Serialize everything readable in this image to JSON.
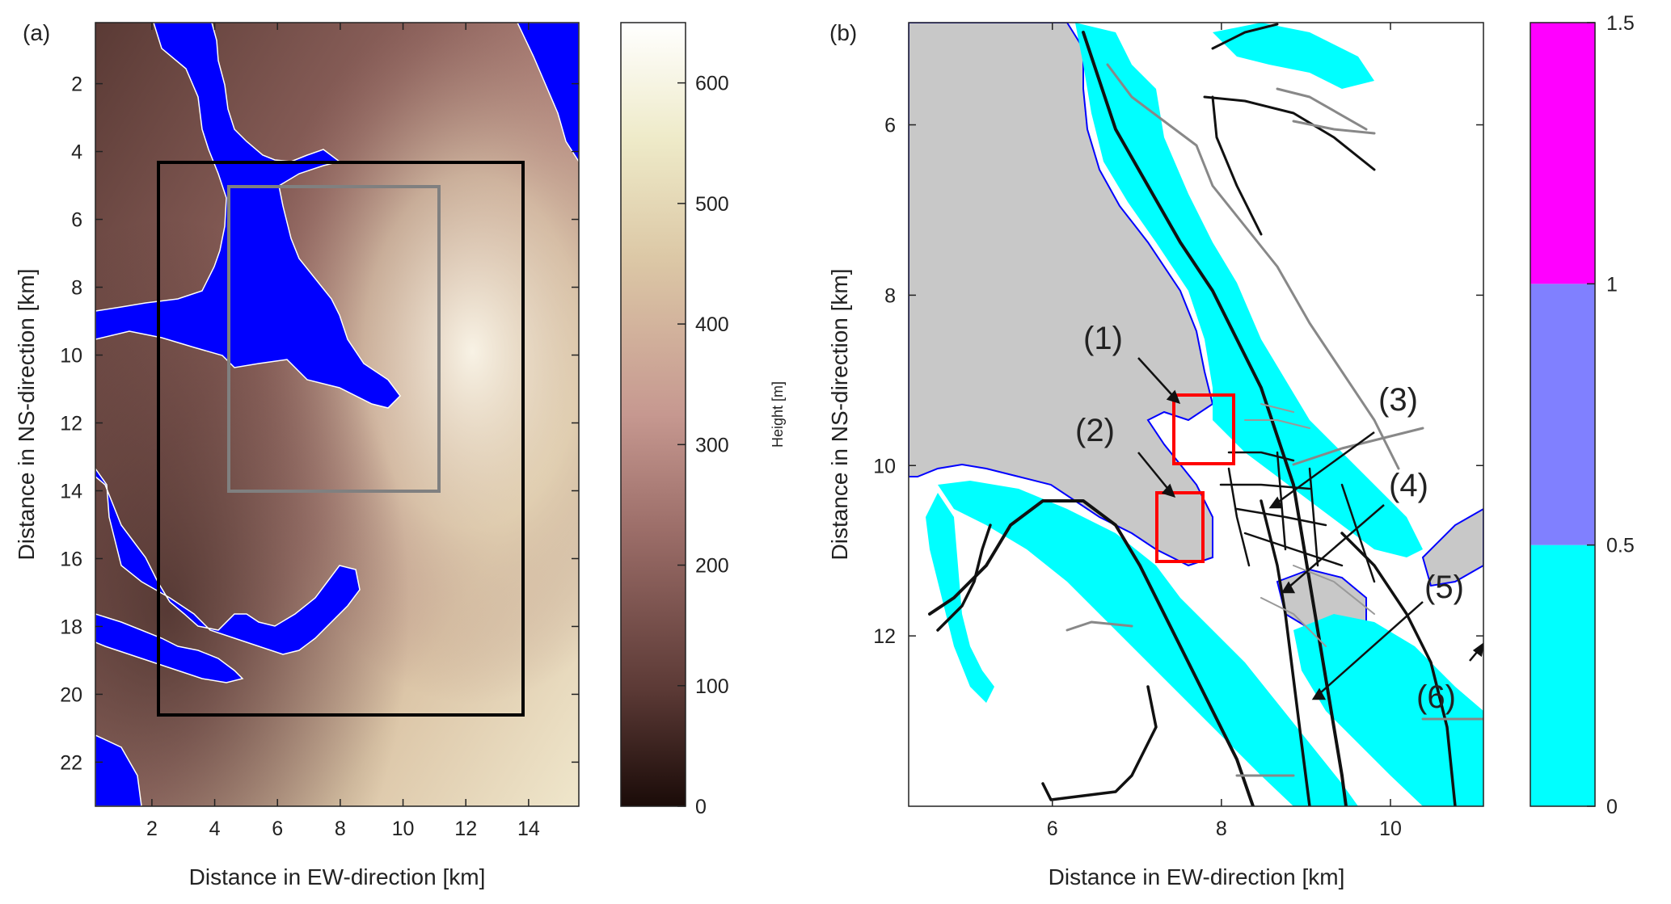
{
  "chart_data": [
    {
      "panel": "(a)",
      "type": "heatmap",
      "xlabel": "Distance in EW-direction [km]",
      "ylabel": "Distance in NS-direction [km]",
      "xlim": [
        0.2,
        15.6
      ],
      "ylim": [
        23.3,
        0.2
      ],
      "y_reversed": true,
      "xticks": [
        "2",
        "4",
        "6",
        "8",
        "10",
        "12",
        "14"
      ],
      "yticks": [
        "2",
        "4",
        "6",
        "8",
        "10",
        "12",
        "14",
        "16",
        "18",
        "20",
        "22"
      ],
      "colorbar": {
        "label": "Height [m]",
        "range": [
          0,
          650
        ],
        "ticks": [
          "0",
          "100",
          "200",
          "300",
          "400",
          "500",
          "600"
        ],
        "colormap": "pink-brown",
        "colors": [
          "#1a0b08",
          "#5c3a36",
          "#9b6d68",
          "#c69890",
          "#dcc8a6",
          "#eeeac8",
          "#ffffff"
        ]
      },
      "water_color": "#0000ff",
      "grid": false,
      "boxes": [
        {
          "color": "#000000",
          "x": [
            2.1,
            13.8
          ],
          "y": [
            4.2,
            20.7
          ]
        },
        {
          "color": "#808080",
          "x": [
            4.5,
            11.1
          ],
          "y": [
            4.9,
            13.9
          ]
        }
      ]
    },
    {
      "panel": "(b)",
      "type": "heatmap",
      "xlabel": "Distance in EW-direction [km]",
      "ylabel": "Distance in NS-direction [km]",
      "xlim": [
        4.3,
        11.1
      ],
      "ylim": [
        14.0,
        4.8
      ],
      "y_reversed": true,
      "xticks": [
        "6",
        "8",
        "10"
      ],
      "yticks": [
        "6",
        "8",
        "10",
        "12"
      ],
      "colorbar": {
        "range": [
          0,
          1.5
        ],
        "ticks": [
          "0",
          "0.5",
          "1",
          "1.5"
        ],
        "bands": [
          {
            "from": 0,
            "to": 0.5,
            "color": "#00ffff"
          },
          {
            "from": 0.5,
            "to": 1,
            "color": "#8080ff"
          },
          {
            "from": 1,
            "to": 1.5,
            "color": "#ff00ff"
          }
        ]
      },
      "water_color": "#c8c8c8",
      "grid": false,
      "annotations": [
        {
          "label": "(1)",
          "arrow_from": [
            7.0,
            9.2
          ],
          "arrow_to": [
            7.55,
            9.42
          ]
        },
        {
          "label": "(2)",
          "arrow_from": [
            7.0,
            9.92
          ],
          "arrow_to": [
            7.55,
            10.43
          ]
        },
        {
          "label": "(3)",
          "arrow_from": [
            9.35,
            9.5
          ],
          "arrow_to": [
            8.5,
            10.52
          ]
        },
        {
          "label": "(4)",
          "arrow_from": [
            9.4,
            10.55
          ],
          "arrow_to": [
            8.75,
            11.55
          ]
        },
        {
          "label": "(5)",
          "arrow_from": [
            10.4,
            11.55
          ],
          "arrow_to": [
            9.05,
            12.7
          ]
        },
        {
          "label": "(6)",
          "arrow_from": [
            null,
            null
          ],
          "arrow_to": [
            null,
            null
          ]
        }
      ],
      "red_boxes": [
        {
          "x": [
            7.55,
            8.2
          ],
          "y": [
            9.2,
            10.0
          ]
        },
        {
          "x": [
            7.3,
            7.8
          ],
          "y": [
            10.35,
            11.1
          ]
        }
      ]
    }
  ]
}
